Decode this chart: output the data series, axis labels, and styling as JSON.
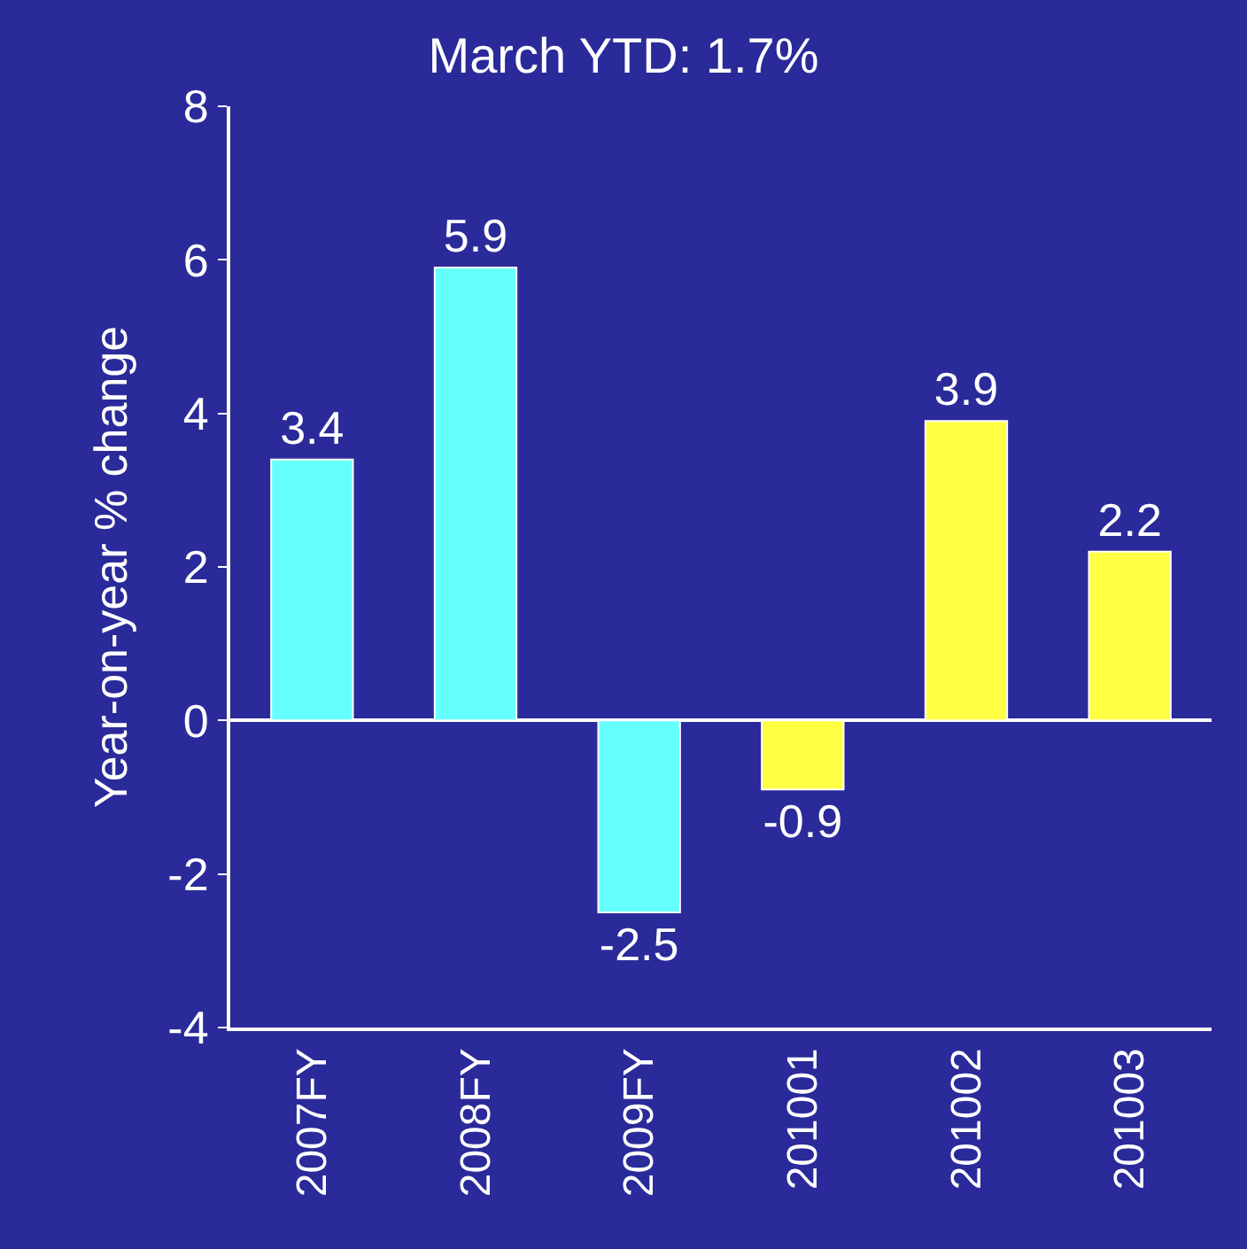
{
  "chart_data": {
    "type": "bar",
    "title": "March YTD: 1.7%",
    "ylabel": "Year-on-year % change",
    "categories": [
      "2007FY",
      "2008FY",
      "2009FY",
      "201001",
      "201002",
      "201003"
    ],
    "values": [
      3.4,
      5.9,
      -2.5,
      -0.9,
      3.9,
      2.2
    ],
    "colors": [
      "#66ffff",
      "#66ffff",
      "#66ffff",
      "#ffff44",
      "#ffff44",
      "#ffff44"
    ],
    "data_labels": true,
    "ylim": [
      -4,
      8
    ],
    "yticks": [
      -4,
      -2,
      0,
      2,
      4,
      6,
      8
    ]
  }
}
